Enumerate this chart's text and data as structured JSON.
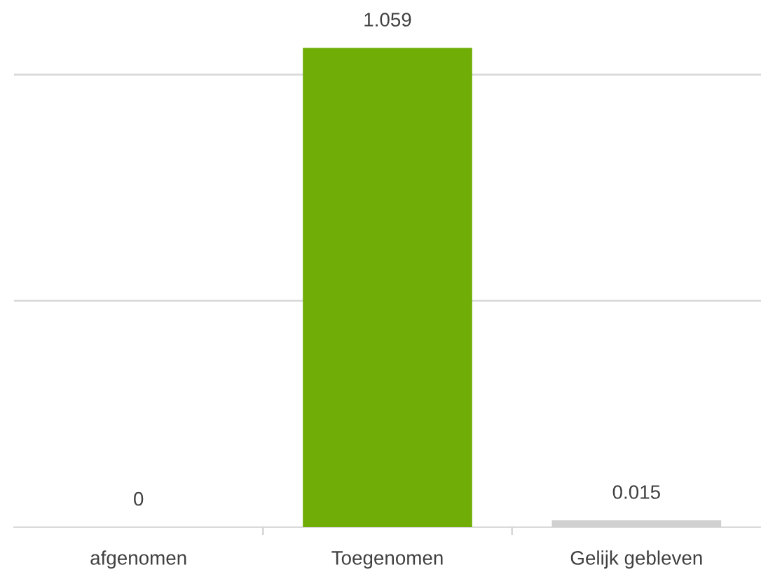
{
  "chart_data": {
    "type": "bar",
    "categories": [
      "afgenomen",
      "Toegenomen",
      "Gelijk gebleven"
    ],
    "values": [
      0,
      1.059,
      0.015
    ],
    "colors": [
      "#70ad07",
      "#70ad07",
      "#d0d0d0"
    ],
    "ref_lines": [
      {
        "axis": "y",
        "value": 0.5,
        "color": "#d9d9d9"
      },
      {
        "axis": "y",
        "value": 1,
        "color": "#d9d9d9"
      }
    ],
    "data_labels": true,
    "tick_labels": "x"
  }
}
